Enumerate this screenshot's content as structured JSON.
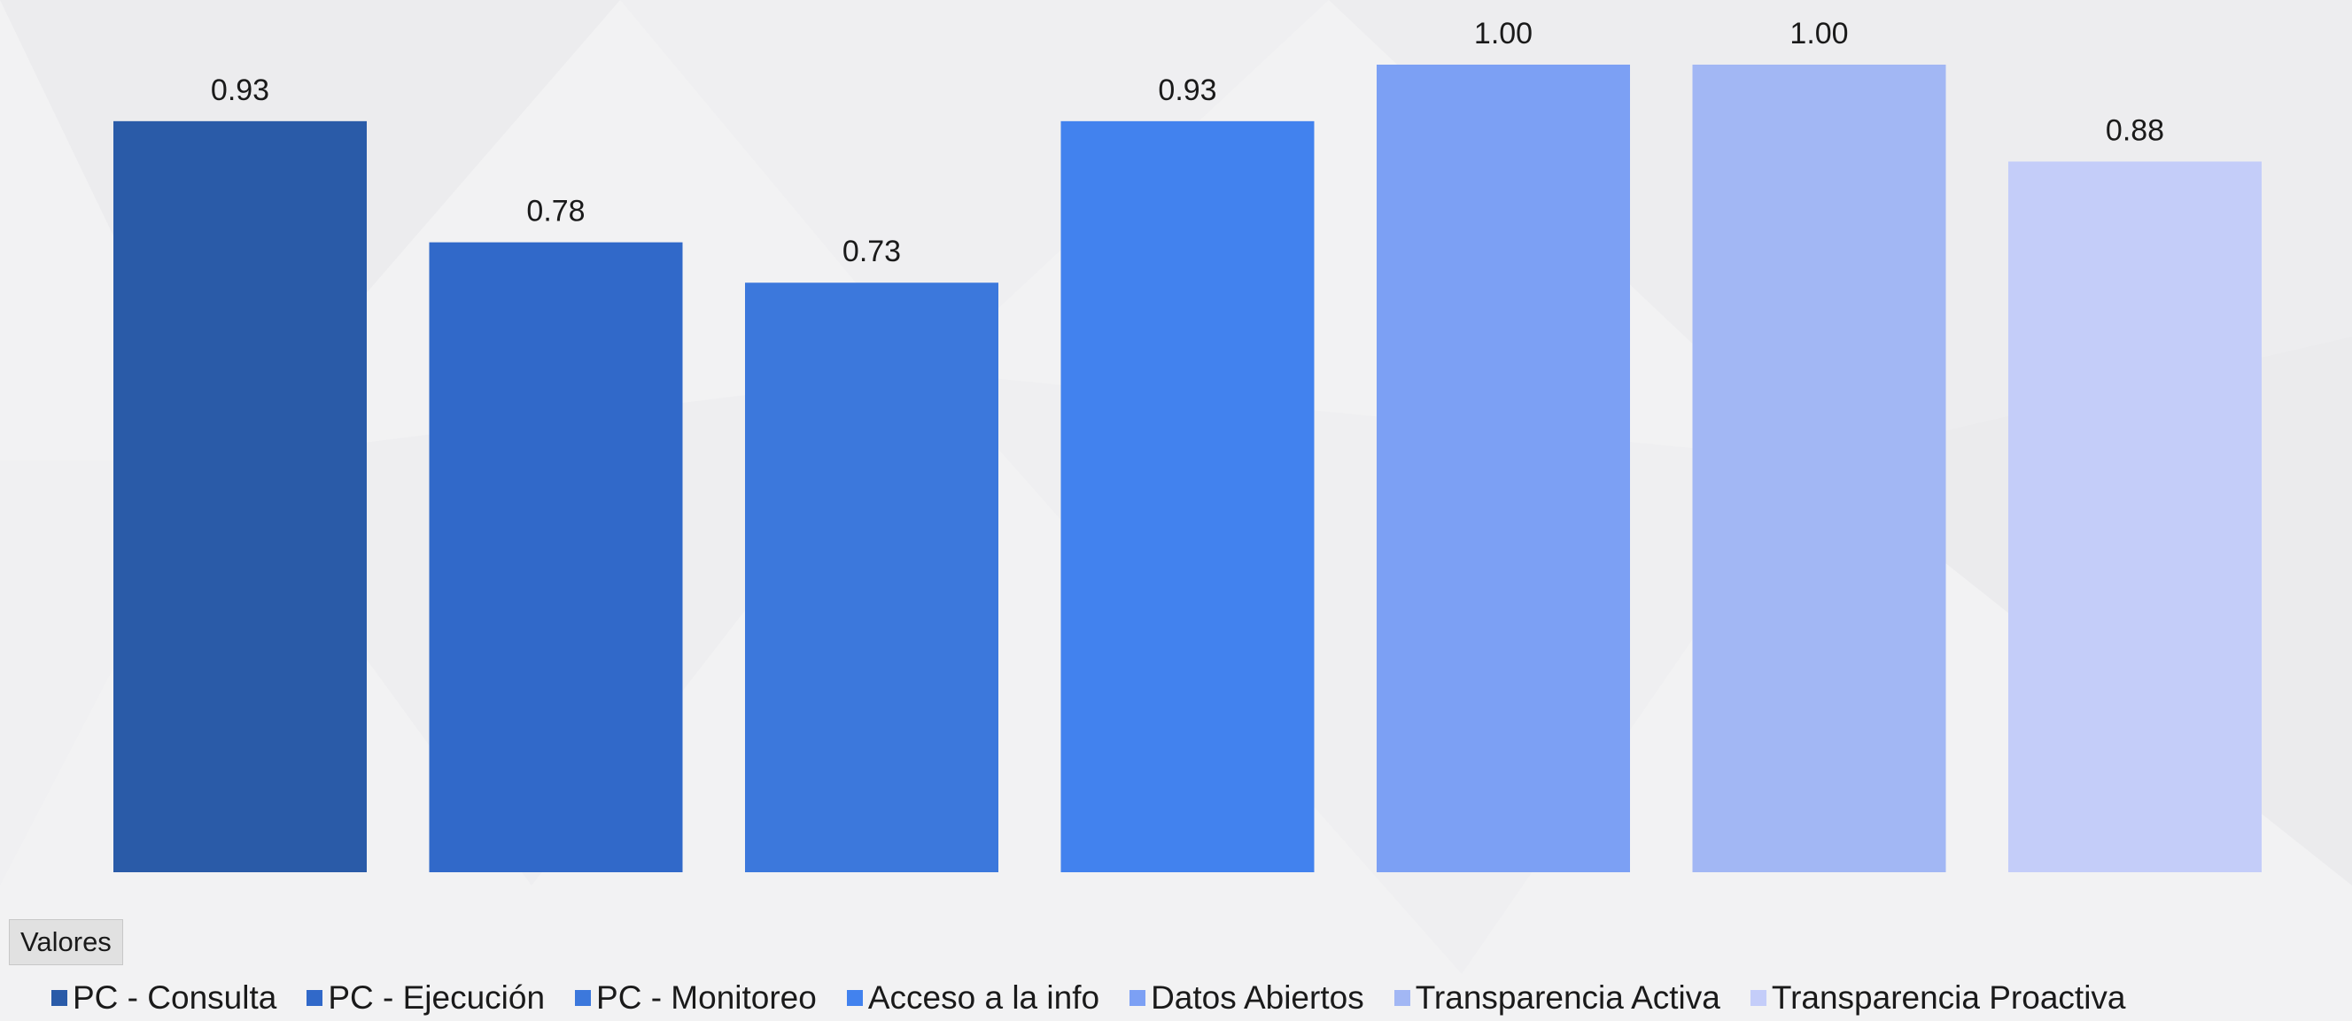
{
  "chart_data": {
    "type": "bar",
    "categories": [
      "PC - Consulta",
      "PC - Ejecución",
      "PC - Monitoreo",
      "Acceso a la info",
      "Datos Abiertos",
      "Transparencia Activa",
      "Transparencia Proactiva"
    ],
    "values": [
      0.93,
      0.78,
      0.73,
      0.93,
      1.0,
      1.0,
      0.88
    ],
    "value_labels": [
      "0.93",
      "0.78",
      "0.73",
      "0.93",
      "1.00",
      "1.00",
      "0.88"
    ],
    "colors": [
      "#2a5ba8",
      "#3169c9",
      "#3c78dc",
      "#4282ee",
      "#7ca0f4",
      "#a2b7f4",
      "#c4cdf9"
    ],
    "ylim": [
      0,
      1
    ],
    "grid": false,
    "legend_position": "bottom",
    "legend": [
      "PC - Consulta",
      "PC - Ejecución",
      "PC - Monitoreo",
      "Acceso a la info",
      "Datos Abiertos",
      "Transparencia Activa",
      "Transparencia Proactiva"
    ]
  },
  "field_button": "Valores"
}
